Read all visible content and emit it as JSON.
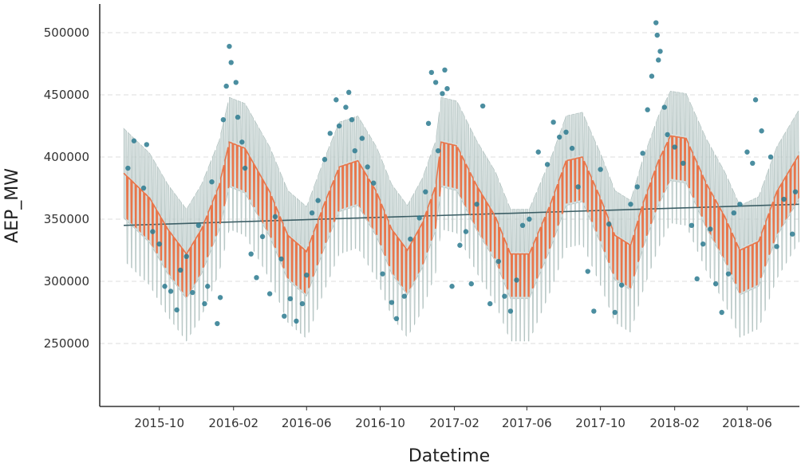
{
  "chart_data": {
    "type": "line",
    "title": "",
    "xlabel": "Datetime",
    "ylabel": "AEP_MW",
    "x_range": [
      "2015-08-03",
      "2018-08-26"
    ],
    "ylim": [
      200000,
      520000
    ],
    "grid": "horizontal dashed",
    "x_ticks": [
      "2015-10",
      "2016-02",
      "2016-06",
      "2016-10",
      "2017-02",
      "2017-06",
      "2017-10",
      "2018-02",
      "2018-06"
    ],
    "y_ticks": [
      250000,
      300000,
      350000,
      400000,
      450000,
      500000
    ],
    "y_tick_labels": [
      "250000",
      "300000",
      "350000",
      "400000",
      "450000",
      "500000"
    ],
    "colors": {
      "actual_points": "#2b7a8f",
      "forecast_line": "#e8754a",
      "uncertainty_band": "#c5d3d1",
      "trend_line": "#3d5f66",
      "grid": "#dddddd",
      "axis": "#333333"
    },
    "series": [
      {
        "role": "trend",
        "x": [
          "2015-08-03",
          "2018-08-26"
        ],
        "values": [
          345000,
          362000
        ]
      },
      {
        "role": "forecast",
        "x": [
          "2015-08-03",
          "2015-09-15",
          "2015-10-15",
          "2015-11-15",
          "2015-12-10",
          "2016-01-08",
          "2016-01-25",
          "2016-02-20",
          "2016-04-01",
          "2016-05-01",
          "2016-06-01",
          "2016-06-30",
          "2016-07-25",
          "2016-08-25",
          "2016-09-25",
          "2016-10-20",
          "2016-11-15",
          "2016-12-10",
          "2017-01-01",
          "2017-01-10",
          "2017-02-05",
          "2017-03-10",
          "2017-04-10",
          "2017-05-05",
          "2017-06-05",
          "2017-07-10",
          "2017-08-05",
          "2017-09-01",
          "2017-10-01",
          "2017-10-25",
          "2017-11-20",
          "2017-12-10",
          "2018-01-05",
          "2018-01-25",
          "2018-02-20",
          "2018-03-25",
          "2018-04-25",
          "2018-05-20",
          "2018-06-20",
          "2018-07-20",
          "2018-08-26"
        ],
        "values": [
          370000,
          350000,
          325000,
          305000,
          325000,
          360000,
          395000,
          390000,
          355000,
          320000,
          307000,
          345000,
          375000,
          380000,
          355000,
          325000,
          308000,
          330000,
          360000,
          395000,
          392000,
          360000,
          335000,
          305000,
          305000,
          345000,
          380000,
          383000,
          350000,
          320000,
          312000,
          345000,
          380000,
          400000,
          398000,
          362000,
          335000,
          308000,
          315000,
          355000,
          385000
        ]
      },
      {
        "role": "actual",
        "points": [
          [
            "2015-08-10",
            391000
          ],
          [
            "2015-08-20",
            413000
          ],
          [
            "2015-09-05",
            375000
          ],
          [
            "2015-09-10",
            410000
          ],
          [
            "2015-09-20",
            340000
          ],
          [
            "2015-10-01",
            330000
          ],
          [
            "2015-10-10",
            296000
          ],
          [
            "2015-10-20",
            292000
          ],
          [
            "2015-10-30",
            277000
          ],
          [
            "2015-11-05",
            309000
          ],
          [
            "2015-11-15",
            320000
          ],
          [
            "2015-11-25",
            291000
          ],
          [
            "2015-12-05",
            345000
          ],
          [
            "2015-12-15",
            282000
          ],
          [
            "2015-12-20",
            296000
          ],
          [
            "2015-12-27",
            380000
          ],
          [
            "2016-01-05",
            266000
          ],
          [
            "2016-01-10",
            287000
          ],
          [
            "2016-01-15",
            430000
          ],
          [
            "2016-01-20",
            457000
          ],
          [
            "2016-01-25",
            489000
          ],
          [
            "2016-01-28",
            476000
          ],
          [
            "2016-02-05",
            460000
          ],
          [
            "2016-02-08",
            432000
          ],
          [
            "2016-02-15",
            412000
          ],
          [
            "2016-02-20",
            391000
          ],
          [
            "2016-03-01",
            322000
          ],
          [
            "2016-03-10",
            303000
          ],
          [
            "2016-03-20",
            336000
          ],
          [
            "2016-04-01",
            290000
          ],
          [
            "2016-04-10",
            352000
          ],
          [
            "2016-04-20",
            318000
          ],
          [
            "2016-04-25",
            272000
          ],
          [
            "2016-05-05",
            286000
          ],
          [
            "2016-05-15",
            268000
          ],
          [
            "2016-05-25",
            282000
          ],
          [
            "2016-06-01",
            305000
          ],
          [
            "2016-06-10",
            355000
          ],
          [
            "2016-06-20",
            365000
          ],
          [
            "2016-07-01",
            398000
          ],
          [
            "2016-07-10",
            419000
          ],
          [
            "2016-07-20",
            446000
          ],
          [
            "2016-07-25",
            425000
          ],
          [
            "2016-08-05",
            440000
          ],
          [
            "2016-08-10",
            452000
          ],
          [
            "2016-08-15",
            430000
          ],
          [
            "2016-08-20",
            405000
          ],
          [
            "2016-09-01",
            415000
          ],
          [
            "2016-09-10",
            392000
          ],
          [
            "2016-09-20",
            379000
          ],
          [
            "2016-10-05",
            306000
          ],
          [
            "2016-10-20",
            283000
          ],
          [
            "2016-10-28",
            270000
          ],
          [
            "2016-11-10",
            288000
          ],
          [
            "2016-11-20",
            334000
          ],
          [
            "2016-12-05",
            351000
          ],
          [
            "2016-12-15",
            372000
          ],
          [
            "2016-12-20",
            427000
          ],
          [
            "2016-12-25",
            468000
          ],
          [
            "2017-01-01",
            460000
          ],
          [
            "2017-01-05",
            405000
          ],
          [
            "2017-01-12",
            451000
          ],
          [
            "2017-01-16",
            470000
          ],
          [
            "2017-01-20",
            455000
          ],
          [
            "2017-01-28",
            296000
          ],
          [
            "2017-02-10",
            329000
          ],
          [
            "2017-02-20",
            340000
          ],
          [
            "2017-03-01",
            298000
          ],
          [
            "2017-03-10",
            362000
          ],
          [
            "2017-03-20",
            441000
          ],
          [
            "2017-04-01",
            282000
          ],
          [
            "2017-04-15",
            316000
          ],
          [
            "2017-04-25",
            288000
          ],
          [
            "2017-05-05",
            276000
          ],
          [
            "2017-05-15",
            301000
          ],
          [
            "2017-05-25",
            345000
          ],
          [
            "2017-06-05",
            350000
          ],
          [
            "2017-06-20",
            404000
          ],
          [
            "2017-07-05",
            394000
          ],
          [
            "2017-07-15",
            428000
          ],
          [
            "2017-07-25",
            416000
          ],
          [
            "2017-08-05",
            420000
          ],
          [
            "2017-08-15",
            407000
          ],
          [
            "2017-08-25",
            376000
          ],
          [
            "2017-09-10",
            308000
          ],
          [
            "2017-09-20",
            276000
          ],
          [
            "2017-10-01",
            390000
          ],
          [
            "2017-10-15",
            346000
          ],
          [
            "2017-10-25",
            275000
          ],
          [
            "2017-11-05",
            297000
          ],
          [
            "2017-11-20",
            362000
          ],
          [
            "2017-12-01",
            376000
          ],
          [
            "2017-12-10",
            403000
          ],
          [
            "2017-12-18",
            438000
          ],
          [
            "2017-12-25",
            465000
          ],
          [
            "2018-01-01",
            508000
          ],
          [
            "2018-01-03",
            498000
          ],
          [
            "2018-01-05",
            478000
          ],
          [
            "2018-01-08",
            485000
          ],
          [
            "2018-01-15",
            440000
          ],
          [
            "2018-01-20",
            418000
          ],
          [
            "2018-02-01",
            408000
          ],
          [
            "2018-02-15",
            395000
          ],
          [
            "2018-03-01",
            345000
          ],
          [
            "2018-03-10",
            302000
          ],
          [
            "2018-03-20",
            330000
          ],
          [
            "2018-04-01",
            342000
          ],
          [
            "2018-04-10",
            298000
          ],
          [
            "2018-04-20",
            275000
          ],
          [
            "2018-05-01",
            306000
          ],
          [
            "2018-05-10",
            355000
          ],
          [
            "2018-05-20",
            362000
          ],
          [
            "2018-06-01",
            404000
          ],
          [
            "2018-06-10",
            395000
          ],
          [
            "2018-06-15",
            446000
          ],
          [
            "2018-06-25",
            421000
          ],
          [
            "2018-07-10",
            400000
          ],
          [
            "2018-07-20",
            328000
          ],
          [
            "2018-08-01",
            366000
          ],
          [
            "2018-08-15",
            338000
          ],
          [
            "2018-08-20",
            372000
          ]
        ]
      }
    ]
  }
}
